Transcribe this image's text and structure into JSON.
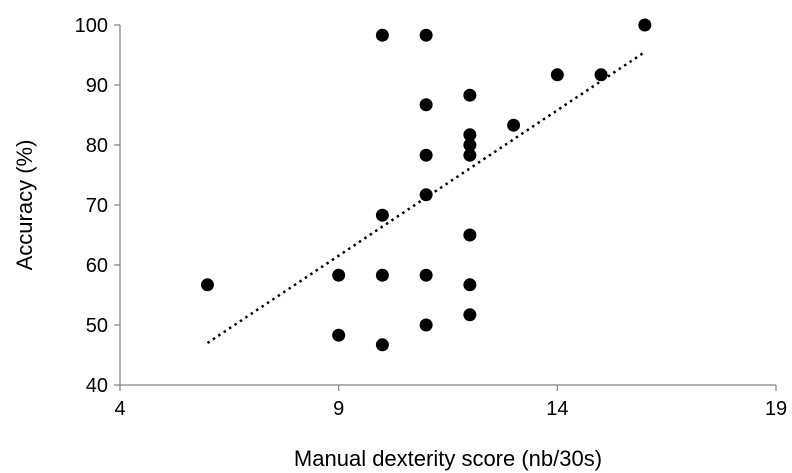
{
  "chart_data": {
    "type": "scatter",
    "xlabel": "Manual dexterity score (nb/30s)",
    "ylabel": "Accuracy (%)",
    "xlim": [
      4,
      19
    ],
    "ylim": [
      40,
      100
    ],
    "x_ticks": [
      4,
      9,
      14,
      19
    ],
    "y_ticks": [
      40,
      50,
      60,
      70,
      80,
      90,
      100
    ],
    "grid": false,
    "marker_color": "#000000",
    "points": [
      {
        "x": 6,
        "y": 56.7
      },
      {
        "x": 9,
        "y": 58.3
      },
      {
        "x": 9,
        "y": 48.3
      },
      {
        "x": 10,
        "y": 98.3
      },
      {
        "x": 10,
        "y": 68.3
      },
      {
        "x": 10,
        "y": 58.3
      },
      {
        "x": 10,
        "y": 46.7
      },
      {
        "x": 11,
        "y": 98.3
      },
      {
        "x": 11,
        "y": 86.7
      },
      {
        "x": 11,
        "y": 78.3
      },
      {
        "x": 11,
        "y": 71.7
      },
      {
        "x": 11,
        "y": 58.3
      },
      {
        "x": 11,
        "y": 50.0
      },
      {
        "x": 12,
        "y": 88.3
      },
      {
        "x": 12,
        "y": 81.7
      },
      {
        "x": 12,
        "y": 80.0
      },
      {
        "x": 12,
        "y": 78.3
      },
      {
        "x": 12,
        "y": 65.0
      },
      {
        "x": 12,
        "y": 56.7
      },
      {
        "x": 12,
        "y": 51.7
      },
      {
        "x": 13,
        "y": 83.3
      },
      {
        "x": 14,
        "y": 91.7
      },
      {
        "x": 15,
        "y": 91.7
      },
      {
        "x": 16,
        "y": 100.0
      }
    ],
    "trendline": {
      "style": "dotted",
      "x": [
        6,
        16
      ],
      "y": [
        47,
        95.5
      ]
    }
  }
}
